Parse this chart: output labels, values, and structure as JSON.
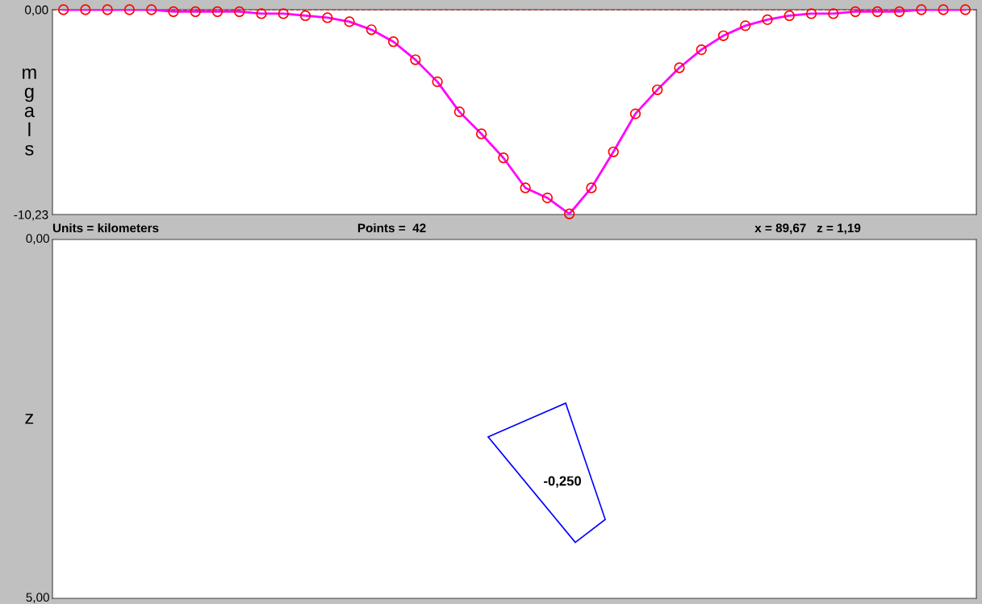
{
  "chart_data": [
    {
      "type": "line",
      "ylabel": "mgals",
      "categories": [
        null,
        null,
        null,
        null,
        null,
        null,
        null,
        null,
        null,
        null,
        null,
        null,
        null,
        null,
        null,
        null,
        null,
        null,
        null,
        null,
        null,
        null,
        null,
        null,
        null,
        null,
        null,
        null,
        null,
        null,
        null,
        null,
        null,
        null,
        null,
        null,
        null,
        null,
        null,
        null,
        null,
        null
      ],
      "series": [
        {
          "type": "line",
          "color": "#ff00ff",
          "marker": "none",
          "values": [
            0,
            0,
            0,
            0,
            0,
            -0.1,
            -0.1,
            -0.1,
            -0.1,
            -0.2,
            -0.2,
            -0.3,
            -0.4,
            -0.6,
            -1.0,
            -1.6,
            -2.5,
            -3.6,
            -5.1,
            -6.2,
            -7.4,
            -8.9,
            -9.4,
            -10.2,
            -8.9,
            -7.1,
            -5.2,
            -4.0,
            -2.9,
            -2.0,
            -1.3,
            -0.8,
            -0.5,
            -0.3,
            -0.2,
            -0.2,
            -0.1,
            -0.1,
            -0.1,
            0,
            0,
            0
          ]
        },
        {
          "type": "scatter",
          "color": "#ff0000",
          "marker": "circle",
          "values": [
            0,
            0,
            0,
            0,
            0,
            -0.1,
            -0.1,
            -0.1,
            -0.1,
            -0.2,
            -0.2,
            -0.3,
            -0.4,
            -0.6,
            -1.0,
            -1.6,
            -2.5,
            -3.6,
            -5.1,
            -6.2,
            -7.4,
            -8.9,
            -9.4,
            -10.2,
            -8.9,
            -7.1,
            -5.2,
            -4.0,
            -2.9,
            -2.0,
            -1.3,
            -0.8,
            -0.5,
            -0.3,
            -0.2,
            -0.2,
            -0.1,
            -0.1,
            -0.1,
            0,
            0,
            0
          ]
        }
      ],
      "ylim": [
        -10.23,
        0
      ],
      "yticks": [
        {
          "value": -10.23,
          "label": "-10,23"
        },
        {
          "value": 0,
          "label": "0,00"
        }
      ],
      "ref_lines": [
        {
          "axis": "y",
          "value": 0,
          "color": "#ff0000",
          "line_style": "dashed"
        }
      ],
      "tick_labels": "y",
      "grid": false,
      "legend": false,
      "annotations": [
        "Units = kilometers",
        "Points =  42",
        "x = 89,67   z = 1,19"
      ]
    },
    {
      "type": "other",
      "ylabel": "z",
      "annotations": [
        "0,00",
        "5,00",
        "-0,250"
      ]
    }
  ]
}
